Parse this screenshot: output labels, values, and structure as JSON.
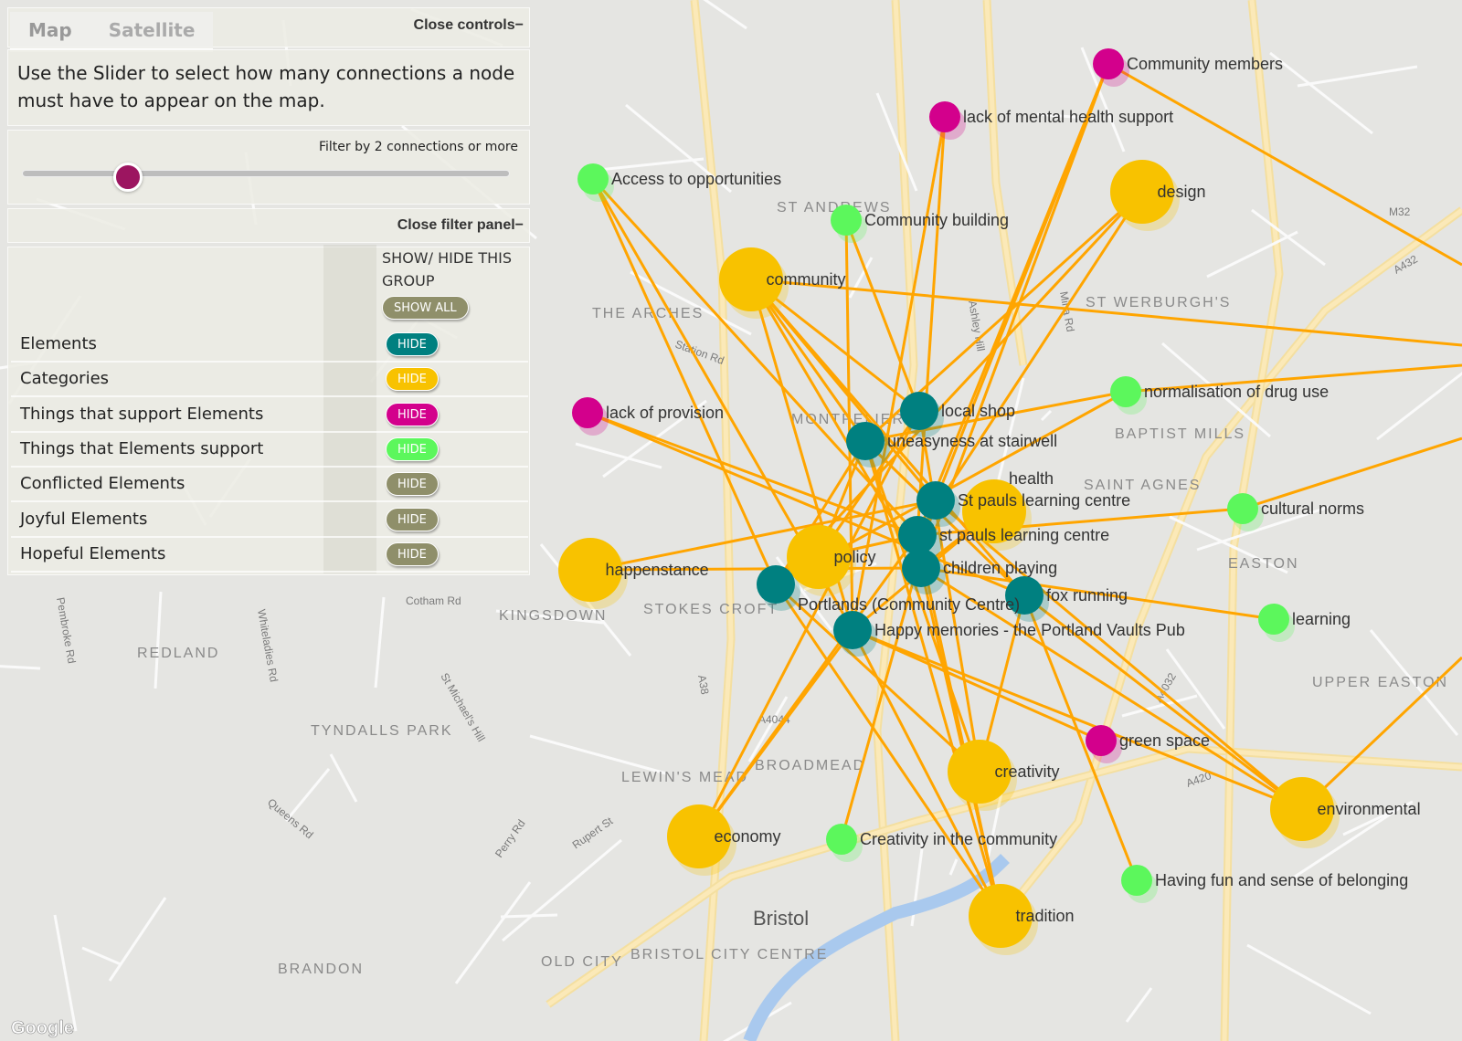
{
  "map_type_control": {
    "tabs": [
      "Map",
      "Satellite"
    ],
    "active": "Map"
  },
  "controls": {
    "close_controls": "Close controls−",
    "description": "Use the Slider to select how many connections a node must have to appear on the map.",
    "filter_label": "Filter by 2 connections or more",
    "slider_value": 2,
    "close_filter_panel": "Close filter panel−",
    "group_header": "SHOW/ HIDE THIS GROUP",
    "show_all": "SHOW ALL",
    "groups": [
      {
        "label": "Elements",
        "button": "HIDE",
        "color": "#008080"
      },
      {
        "label": "Categories",
        "button": "HIDE",
        "color": "#f8c200"
      },
      {
        "label": "Things that support Elements",
        "button": "HIDE",
        "color": "#d3008c"
      },
      {
        "label": "Things that Elements support",
        "button": "HIDE",
        "color": "#5cf75c"
      },
      {
        "label": "Conflicted Elements",
        "button": "HIDE",
        "color": "#8f8f6a"
      },
      {
        "label": "Joyful Elements",
        "button": "HIDE",
        "color": "#8f8f6a"
      },
      {
        "label": "Hopeful Elements",
        "button": "HIDE",
        "color": "#8f8f6a"
      }
    ]
  },
  "colors": {
    "element": "#008080",
    "category": "#f8c200",
    "supports_elements": "#d3008c",
    "elements_support": "#5cf75c",
    "edge": "#ffa500"
  },
  "nodes": [
    {
      "label": "Community members",
      "group": "supports_elements"
    },
    {
      "label": "lack of mental health support",
      "group": "supports_elements"
    },
    {
      "label": "Access to opportunities",
      "group": "elements_support"
    },
    {
      "label": "design",
      "group": "category"
    },
    {
      "label": "Community building",
      "group": "elements_support"
    },
    {
      "label": "community",
      "group": "category"
    },
    {
      "label": "lack of provision",
      "group": "supports_elements"
    },
    {
      "label": "normalisation of drug use",
      "group": "elements_support"
    },
    {
      "label": "local shop",
      "group": "element"
    },
    {
      "label": "uneasyness at stairwell",
      "group": "element"
    },
    {
      "label": "St pauls learning centre",
      "group": "element"
    },
    {
      "label": "health",
      "group": "category"
    },
    {
      "label": "st pauls learning centre",
      "group": "element"
    },
    {
      "label": "cultural norms",
      "group": "elements_support"
    },
    {
      "label": "happenstance",
      "group": "category"
    },
    {
      "label": "policy",
      "group": "category"
    },
    {
      "label": "children playing",
      "group": "element"
    },
    {
      "label": "Portlands (Community Centre)",
      "group": "element"
    },
    {
      "label": "fox running",
      "group": "element"
    },
    {
      "label": "learning",
      "group": "elements_support"
    },
    {
      "label": "Happy memories - the Portland Vaults Pub",
      "group": "element"
    },
    {
      "label": "green space",
      "group": "supports_elements"
    },
    {
      "label": "creativity",
      "group": "category"
    },
    {
      "label": "environmental",
      "group": "category"
    },
    {
      "label": "economy",
      "group": "category"
    },
    {
      "label": "Creativity in the community",
      "group": "elements_support"
    },
    {
      "label": "Having fun and sense of belonging",
      "group": "elements_support"
    },
    {
      "label": "tradition",
      "group": "category"
    }
  ],
  "edges": [
    [
      0,
      12
    ],
    [
      0,
      10
    ],
    [
      0,
      16
    ],
    [
      1,
      12
    ],
    [
      1,
      20
    ],
    [
      2,
      17
    ],
    [
      2,
      20
    ],
    [
      2,
      12
    ],
    [
      3,
      9
    ],
    [
      3,
      12
    ],
    [
      3,
      17
    ],
    [
      4,
      8
    ],
    [
      4,
      20
    ],
    [
      5,
      9
    ],
    [
      5,
      16
    ],
    [
      5,
      18
    ],
    [
      5,
      20
    ],
    [
      5,
      10
    ],
    [
      6,
      12
    ],
    [
      6,
      18
    ],
    [
      7,
      17
    ],
    [
      7,
      9
    ],
    [
      8,
      22
    ],
    [
      8,
      15
    ],
    [
      8,
      24
    ],
    [
      9,
      15
    ],
    [
      9,
      22
    ],
    [
      9,
      27
    ],
    [
      10,
      14
    ],
    [
      10,
      23
    ],
    [
      10,
      25
    ],
    [
      12,
      27
    ],
    [
      12,
      13
    ],
    [
      14,
      16
    ],
    [
      15,
      12
    ],
    [
      16,
      23
    ],
    [
      16,
      19
    ],
    [
      16,
      27
    ],
    [
      17,
      22
    ],
    [
      17,
      27
    ],
    [
      18,
      23
    ],
    [
      18,
      26
    ],
    [
      18,
      22
    ],
    [
      20,
      11
    ],
    [
      20,
      21
    ],
    [
      20,
      23
    ],
    [
      20,
      24
    ],
    [
      11,
      16
    ],
    [
      5,
      8
    ],
    [
      17,
      9
    ],
    [
      12,
      24
    ],
    [
      20,
      27
    ],
    [
      9,
      18
    ]
  ],
  "map_labels": {
    "areas": [
      "THE ARCHES",
      "KINGSDOWN",
      "STOKES CROFT",
      "TYNDALLS PARK",
      "REDLAND",
      "EASTON",
      "UPPER EASTON",
      "SAINT AGNES",
      "BAPTIST MILLS",
      "ST WERBURGH'S",
      "MONTPELIER",
      "BROADMEAD",
      "LEWIN'S MEAD",
      "BRISTOL CITY CENTRE",
      "OLD CITY",
      "BRANDON",
      "ST ANDREWS"
    ],
    "city": "Bristol",
    "roads": [
      "Cotham Rd",
      "Station Rd",
      "Ashley Hill",
      "Mina Rd",
      "Pembroke Rd",
      "Whiteladies Rd",
      "St Michael's Hill",
      "Rupert St",
      "Perry Rd",
      "Queens Rd",
      "A4044",
      "A420",
      "A4032",
      "A38",
      "M32",
      "A432"
    ],
    "attribution": "Google"
  }
}
